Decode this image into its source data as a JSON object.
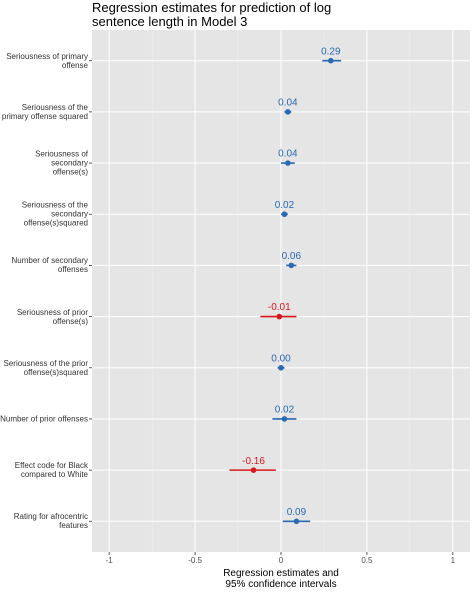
{
  "chart_data": {
    "type": "forest",
    "title": "Regression estimates for prediction of log\nsentence length in Model 3",
    "x_label": "Regression estimates and\n95% confidence intervals",
    "categories": [
      "Seriousness of primary\noffense",
      "Seriousness of the\nprimary offense squared",
      "Seriousness of secondary\noffense(s)",
      "Seriousness of the\nsecondary\noffense(s)squared",
      "Number of secondary\noffenses",
      "Seriousness of prior\noffense(s)",
      "Seriousness of the prior\noffense(s)squared",
      "Number of prior offenses",
      "Effect code for Black\ncompared to White",
      "Rating for afrocentric\nfeatures"
    ],
    "values": [
      0.29,
      0.04,
      0.04,
      0.02,
      0.06,
      -0.01,
      0.0,
      0.02,
      -0.16,
      0.09
    ],
    "value_labels": [
      "0.29",
      "0.04",
      "0.04",
      "0.02",
      "0.06",
      "-0.01",
      "0.00",
      "0.02",
      "-0.16",
      "0.09"
    ],
    "ci_lower": [
      0.24,
      0.02,
      0.0,
      0.0,
      0.03,
      -0.12,
      -0.02,
      -0.05,
      -0.3,
      0.01
    ],
    "ci_upper": [
      0.35,
      0.06,
      0.08,
      0.04,
      0.09,
      0.09,
      0.02,
      0.09,
      -0.03,
      0.17
    ],
    "colors": [
      "#2a6ab3",
      "#2a6ab3",
      "#2a6ab3",
      "#2a6ab3",
      "#2a6ab3",
      "#d7191c",
      "#2a6ab3",
      "#2a6ab3",
      "#d7191c",
      "#2a6ab3"
    ],
    "xlim": [
      -1.1,
      1.1
    ],
    "xticks": [
      -1,
      -0.5,
      0,
      0.5,
      1
    ],
    "grid": true
  }
}
